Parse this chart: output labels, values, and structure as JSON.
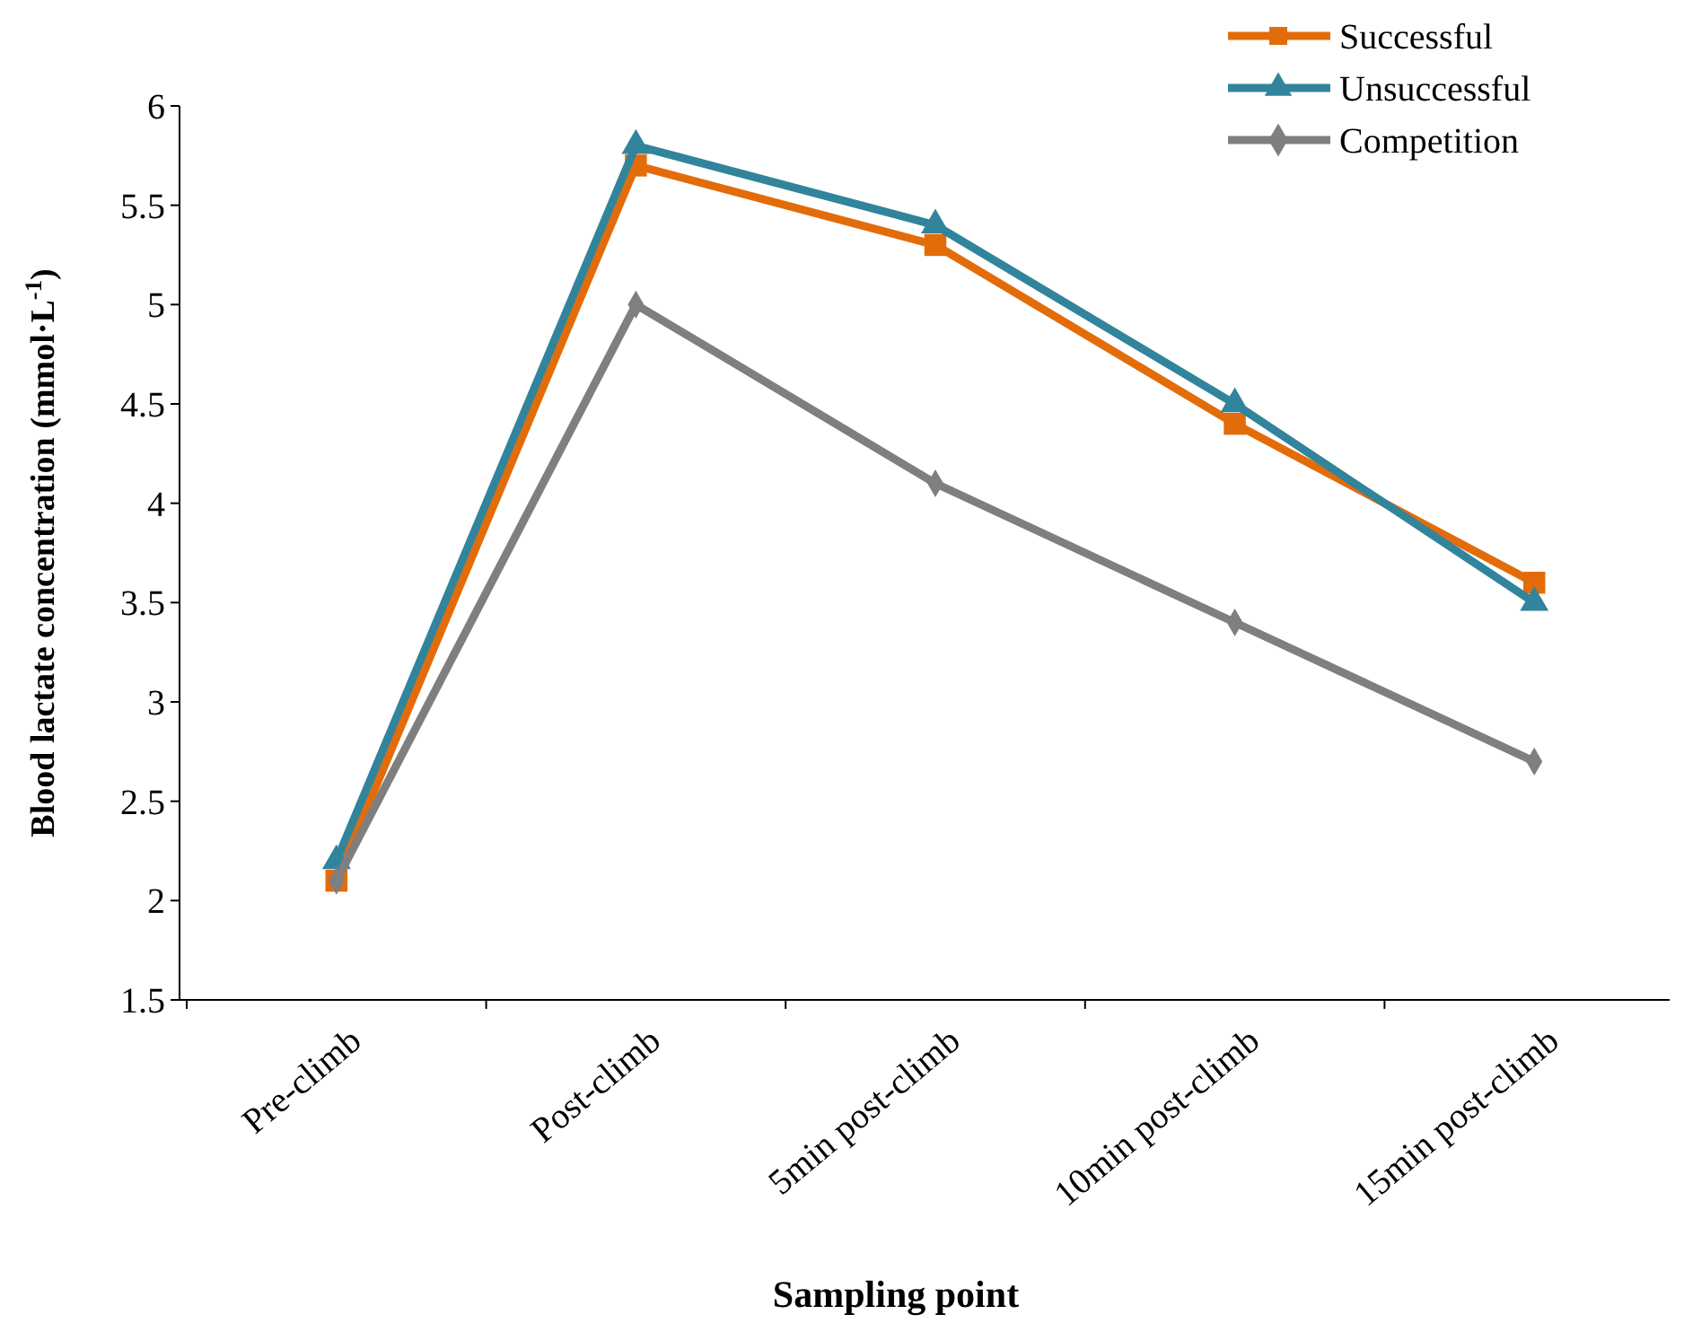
{
  "chart_data": {
    "type": "line",
    "xlabel": "Sampling point",
    "ylabel": "Blood lactate concentration (mmol·L$^{-1}$)",
    "categories": [
      "Pre-climb",
      "Post-climb",
      "5min post-climb",
      "10min post-climb",
      "15min post-climb"
    ],
    "ylim": [
      1.5,
      6
    ],
    "yticks": [
      1.5,
      2,
      2.5,
      3,
      3.5,
      4,
      4.5,
      5,
      5.5,
      6
    ],
    "grid": false,
    "legend": "top right",
    "line_style": "solid",
    "series": [
      {
        "name": "Successful",
        "color": "#e36c0a",
        "marker": "square",
        "values": [
          2.1,
          5.7,
          5.3,
          4.4,
          3.6
        ]
      },
      {
        "name": "Unsuccessful",
        "color": "#31849b",
        "marker": "triangle",
        "values": [
          2.2,
          5.8,
          5.4,
          4.5,
          3.5
        ]
      },
      {
        "name": "Competition",
        "color": "#7f7f7f",
        "marker": "diamond",
        "values": [
          2.1,
          5.0,
          4.1,
          3.4,
          2.7
        ]
      }
    ]
  }
}
